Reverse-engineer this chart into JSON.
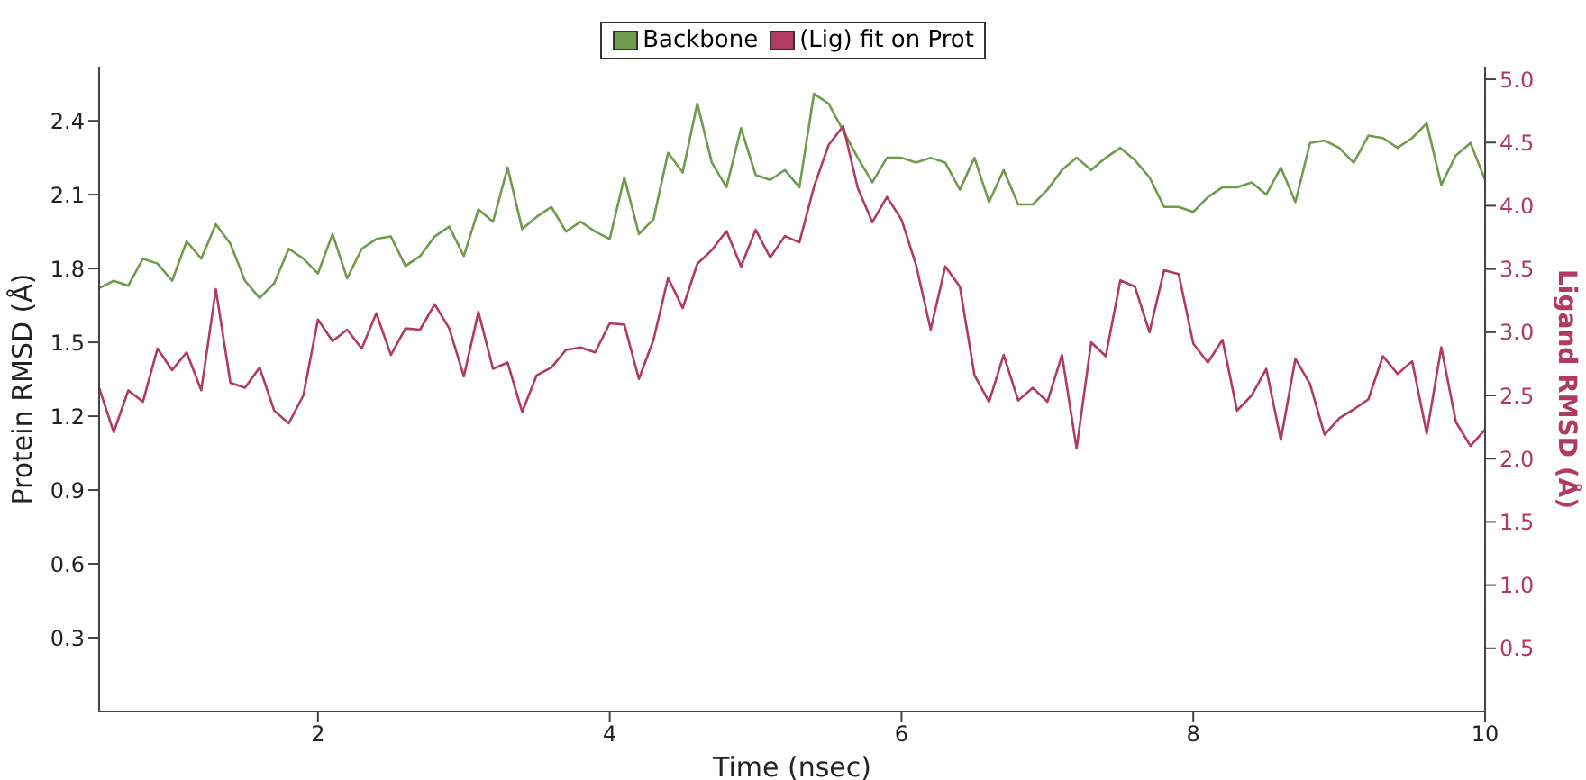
{
  "chart_data": {
    "type": "line",
    "xlabel": "Time (nsec)",
    "ylabel": "Protein RMSD (Å)",
    "y2label": "Ligand RMSD (Å)",
    "x": [
      0.5,
      0.6,
      0.7,
      0.8,
      0.9,
      1.0,
      1.1,
      1.2,
      1.3,
      1.4,
      1.5,
      1.6,
      1.7,
      1.8,
      1.9,
      2.0,
      2.1,
      2.2,
      2.3,
      2.4,
      2.5,
      2.6,
      2.7,
      2.8,
      2.9,
      3.0,
      3.1,
      3.2,
      3.3,
      3.4,
      3.5,
      3.6,
      3.7,
      3.8,
      3.9,
      4.0,
      4.1,
      4.2,
      4.3,
      4.4,
      4.5,
      4.6,
      4.7,
      4.8,
      4.9,
      5.0,
      5.1,
      5.2,
      5.3,
      5.4,
      5.5,
      5.6,
      5.7,
      5.8,
      5.9,
      6.0,
      6.1,
      6.2,
      6.3,
      6.4,
      6.5,
      6.6,
      6.7,
      6.8,
      6.9,
      7.0,
      7.1,
      7.2,
      7.3,
      7.4,
      7.5,
      7.6,
      7.7,
      7.8,
      7.9,
      8.0,
      8.1,
      8.2,
      8.3,
      8.4,
      8.5,
      8.6,
      8.7,
      8.8,
      8.9,
      9.0,
      9.1,
      9.2,
      9.3,
      9.4,
      9.5,
      9.6,
      9.7,
      9.8,
      9.9,
      10.0
    ],
    "series": [
      {
        "name": "Backbone",
        "color": "#6e9c4c",
        "values": [
          1.72,
          1.75,
          1.73,
          1.84,
          1.82,
          1.75,
          1.91,
          1.84,
          1.98,
          1.9,
          1.75,
          1.68,
          1.74,
          1.88,
          1.84,
          1.78,
          1.94,
          1.76,
          1.88,
          1.92,
          1.93,
          1.81,
          1.85,
          1.93,
          1.97,
          1.85,
          2.04,
          1.99,
          2.21,
          1.96,
          2.01,
          2.05,
          1.95,
          1.99,
          1.95,
          1.92,
          2.17,
          1.94,
          2.0,
          2.27,
          2.19,
          2.47,
          2.23,
          2.13,
          2.37,
          2.18,
          2.16,
          2.2,
          2.13,
          2.51,
          2.47,
          2.36,
          2.25,
          2.15,
          2.25,
          2.25,
          2.23,
          2.25,
          2.23,
          2.12,
          2.25,
          2.07,
          2.2,
          2.06,
          2.06,
          2.12,
          2.2,
          2.25,
          2.2,
          2.25,
          2.29,
          2.24,
          2.17,
          2.05,
          2.05,
          2.03,
          2.09,
          2.13,
          2.13,
          2.15,
          2.1,
          2.21,
          2.07,
          2.31,
          2.32,
          2.29,
          2.23,
          2.34,
          2.33,
          2.29,
          2.33,
          2.39,
          2.14,
          2.26,
          2.31,
          2.16
        ]
      },
      {
        "name": "(Lig) fit on Prot",
        "color": "#b03a62",
        "axis": "y2",
        "values": [
          2.56,
          2.21,
          2.54,
          2.45,
          2.87,
          2.7,
          2.84,
          2.54,
          3.34,
          2.6,
          2.56,
          2.72,
          2.38,
          2.28,
          2.5,
          3.1,
          2.93,
          3.02,
          2.87,
          3.15,
          2.82,
          3.03,
          3.02,
          3.22,
          3.03,
          2.65,
          3.16,
          2.71,
          2.76,
          2.37,
          2.66,
          2.72,
          2.86,
          2.88,
          2.84,
          3.07,
          3.06,
          2.63,
          2.94,
          3.43,
          3.19,
          3.54,
          3.65,
          3.8,
          3.52,
          3.81,
          3.59,
          3.76,
          3.71,
          4.15,
          4.48,
          4.63,
          4.14,
          3.87,
          4.07,
          3.89,
          3.53,
          3.02,
          3.52,
          3.36,
          2.66,
          2.45,
          2.82,
          2.46,
          2.56,
          2.45,
          2.82,
          2.08,
          2.92,
          2.81,
          3.41,
          3.36,
          3.0,
          3.49,
          3.46,
          2.91,
          2.76,
          2.94,
          2.38,
          2.5,
          2.71,
          2.15,
          2.79,
          2.59,
          2.19,
          2.32,
          2.39,
          2.47,
          2.81,
          2.67,
          2.77,
          2.2,
          2.88,
          2.29,
          2.1,
          2.23
        ]
      }
    ],
    "xlim": [
      0.5,
      10
    ],
    "xticks": [
      2,
      4,
      6,
      8,
      10
    ],
    "ylim": [
      0,
      2.62
    ],
    "yticks": [
      0.3,
      0.6,
      0.9,
      1.2,
      1.5,
      1.8,
      2.1,
      2.4
    ],
    "y2lim": [
      0,
      5.1
    ],
    "y2ticks": [
      0.5,
      {
        "value": 1,
        "label": "1.0"
      },
      1.5,
      {
        "value": 2,
        "label": "2.0"
      },
      2.5,
      {
        "value": 3,
        "label": "3.0"
      },
      3.5,
      {
        "value": 4,
        "label": "4.0"
      },
      4.5,
      {
        "value": 5,
        "label": "5.0"
      }
    ],
    "legend": "top",
    "marker": "none",
    "line_style": "solid"
  }
}
